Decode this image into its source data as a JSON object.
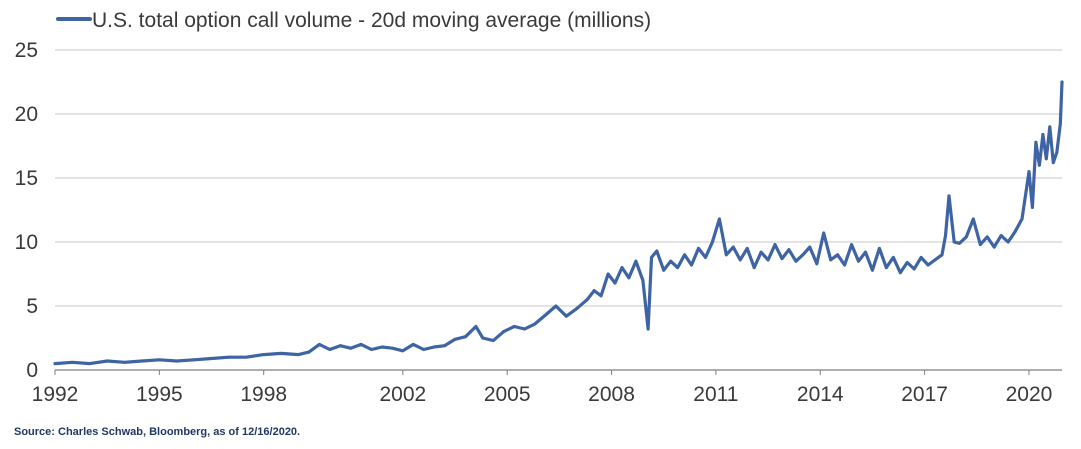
{
  "chart_data": {
    "type": "line",
    "title": "",
    "xlabel": "",
    "ylabel": "",
    "ylim": [
      0,
      25
    ],
    "xlim": [
      1992.0,
      2020.95
    ],
    "yticks": [
      0,
      5,
      10,
      15,
      20,
      25
    ],
    "xticks": [
      1992,
      1995,
      1998,
      2002,
      2005,
      2008,
      2011,
      2014,
      2017,
      2020
    ],
    "xtick_labels": [
      "1992",
      "1995",
      "1998",
      "2002",
      "2005",
      "2008",
      "2011",
      "2014",
      "2017",
      "2020"
    ],
    "grid": true,
    "legend_position": "top-left",
    "series": [
      {
        "name": "U.S. total option call volume - 20d moving average (millions)",
        "color": "#3e64a4",
        "x": [
          1992.0,
          1992.5,
          1993.0,
          1993.5,
          1994.0,
          1994.5,
          1995.0,
          1995.5,
          1996.0,
          1996.5,
          1997.0,
          1997.5,
          1998.0,
          1998.5,
          1999.0,
          1999.3,
          1999.6,
          1999.9,
          2000.2,
          2000.5,
          2000.8,
          2001.1,
          2001.4,
          2001.7,
          2002.0,
          2002.3,
          2002.6,
          2002.9,
          2003.2,
          2003.5,
          2003.8,
          2004.1,
          2004.3,
          2004.6,
          2004.9,
          2005.2,
          2005.5,
          2005.8,
          2006.1,
          2006.4,
          2006.7,
          2007.0,
          2007.3,
          2007.5,
          2007.7,
          2007.9,
          2008.1,
          2008.3,
          2008.5,
          2008.7,
          2008.9,
          2009.05,
          2009.15,
          2009.3,
          2009.5,
          2009.7,
          2009.9,
          2010.1,
          2010.3,
          2010.5,
          2010.7,
          2010.9,
          2011.1,
          2011.3,
          2011.5,
          2011.7,
          2011.9,
          2012.1,
          2012.3,
          2012.5,
          2012.7,
          2012.9,
          2013.1,
          2013.3,
          2013.5,
          2013.7,
          2013.9,
          2014.1,
          2014.3,
          2014.5,
          2014.7,
          2014.9,
          2015.1,
          2015.3,
          2015.5,
          2015.7,
          2015.9,
          2016.1,
          2016.3,
          2016.5,
          2016.7,
          2016.9,
          2017.1,
          2017.3,
          2017.5,
          2017.6,
          2017.7,
          2017.85,
          2018.0,
          2018.2,
          2018.4,
          2018.6,
          2018.8,
          2019.0,
          2019.2,
          2019.4,
          2019.6,
          2019.8,
          2020.0,
          2020.1,
          2020.2,
          2020.3,
          2020.4,
          2020.5,
          2020.6,
          2020.7,
          2020.8,
          2020.9,
          2020.95
        ],
        "values": [
          0.5,
          0.6,
          0.5,
          0.7,
          0.6,
          0.7,
          0.8,
          0.7,
          0.8,
          0.9,
          1.0,
          1.0,
          1.2,
          1.3,
          1.2,
          1.4,
          2.0,
          1.6,
          1.9,
          1.7,
          2.0,
          1.6,
          1.8,
          1.7,
          1.5,
          2.0,
          1.6,
          1.8,
          1.9,
          2.4,
          2.6,
          3.4,
          2.5,
          2.3,
          3.0,
          3.4,
          3.2,
          3.6,
          4.3,
          5.0,
          4.2,
          4.8,
          5.5,
          6.2,
          5.8,
          7.5,
          6.8,
          8.0,
          7.2,
          8.5,
          7.0,
          3.2,
          8.8,
          9.3,
          7.8,
          8.5,
          8.0,
          9.0,
          8.2,
          9.5,
          8.8,
          10.0,
          11.8,
          9.0,
          9.6,
          8.6,
          9.5,
          8.0,
          9.2,
          8.6,
          9.8,
          8.7,
          9.4,
          8.5,
          9.0,
          9.6,
          8.3,
          10.7,
          8.6,
          9.0,
          8.2,
          9.8,
          8.5,
          9.2,
          7.8,
          9.5,
          8.0,
          8.8,
          7.6,
          8.4,
          7.9,
          8.8,
          8.2,
          8.6,
          9.0,
          10.5,
          13.6,
          10.0,
          9.9,
          10.4,
          11.8,
          9.8,
          10.4,
          9.6,
          10.5,
          10.0,
          10.8,
          11.8,
          15.5,
          12.7,
          17.8,
          16.0,
          18.4,
          16.5,
          19.0,
          16.2,
          17.0,
          19.2,
          22.5
        ]
      }
    ]
  },
  "footer": {
    "source": "Source: Charles Schwab, Bloomberg, as of 12/16/2020."
  }
}
